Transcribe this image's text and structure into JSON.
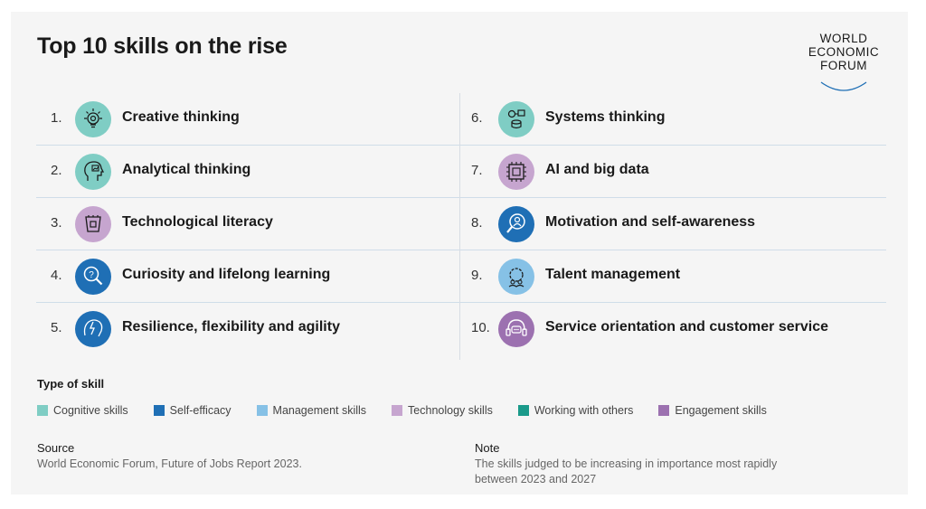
{
  "title": "Top 10 skills on the rise",
  "logo": {
    "lines": [
      "WORLD",
      "ECONOMIC",
      "FORUM"
    ]
  },
  "skills_left": [
    {
      "rank": "1.",
      "label": "Creative thinking",
      "icon": "lightbulb-gear-icon",
      "color": "#7fcdc4"
    },
    {
      "rank": "2.",
      "label": "Analytical thinking",
      "icon": "head-chart-icon",
      "color": "#7fcdc4"
    },
    {
      "rank": "3.",
      "label": "Technological literacy",
      "icon": "tech-chip-icon",
      "color": "#c6a5cf"
    },
    {
      "rank": "4.",
      "label": "Curiosity and lifelong learning",
      "icon": "magnifier-question-icon",
      "color": "#1f6fb5"
    },
    {
      "rank": "5.",
      "label": "Resilience, flexibility and agility",
      "icon": "head-lightning-icon",
      "color": "#1f6fb5"
    }
  ],
  "skills_right": [
    {
      "rank": "6.",
      "label": "Systems thinking",
      "icon": "systems-network-icon",
      "color": "#7fcdc4"
    },
    {
      "rank": "7.",
      "label": "AI and big data",
      "icon": "ai-chip-icon",
      "color": "#c6a5cf"
    },
    {
      "rank": "8.",
      "label": "Motivation and self-awareness",
      "icon": "magnifier-person-icon",
      "color": "#1f6fb5"
    },
    {
      "rank": "9.",
      "label": "Talent management",
      "icon": "gear-people-icon",
      "color": "#86c1e6"
    },
    {
      "rank": "10.",
      "label": "Service orientation and customer service",
      "icon": "headset-chat-icon",
      "color": "#9c71b0"
    }
  ],
  "legend": {
    "title": "Type of skill",
    "items": [
      {
        "label": "Cognitive skills",
        "color": "#7fcdc4"
      },
      {
        "label": "Self-efficacy",
        "color": "#1f6fb5"
      },
      {
        "label": "Management skills",
        "color": "#86c1e6"
      },
      {
        "label": "Technology skills",
        "color": "#c6a5cf"
      },
      {
        "label": "Working with others",
        "color": "#1a9a8a"
      },
      {
        "label": "Engagement skills",
        "color": "#9c71b0"
      }
    ]
  },
  "source": {
    "label": "Source",
    "text": "World Economic Forum, Future of Jobs Report 2023."
  },
  "note": {
    "label": "Note",
    "text": "The skills judged to be increasing in importance most rapidly between 2023 and 2027"
  }
}
